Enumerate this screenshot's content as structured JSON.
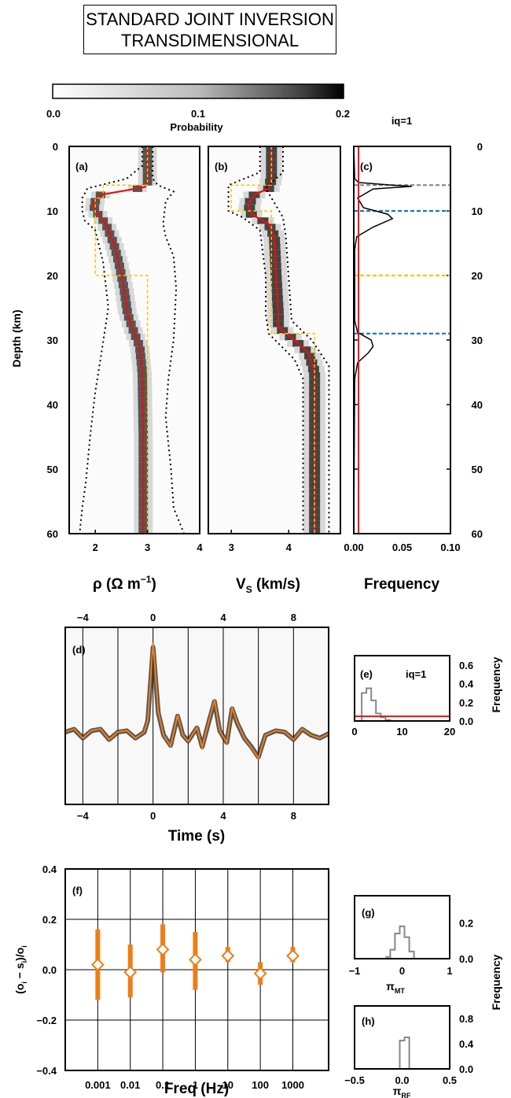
{
  "title": {
    "line1": "STANDARD JOINT INVERSION",
    "line2": "TRANSDIMENSIONAL"
  },
  "colors": {
    "red": "#e8100c",
    "yellow": "#f0c800",
    "orange": "#f07d14",
    "blue": "#1874c8",
    "gray": "#888888",
    "black": "#000000"
  },
  "colorbar": {
    "ticks": [
      "0.0",
      "0.1",
      "0.2"
    ],
    "label": "Probability",
    "range": [
      0,
      0.2
    ]
  },
  "panel_labels": {
    "a": "(a)",
    "b": "(b)",
    "c": "(c)",
    "d": "(d)",
    "e": "(e)",
    "f": "(f)",
    "g": "(g)",
    "h": "(h)"
  },
  "iq_label": "iq=1",
  "iq_label_e": "iq=1",
  "depth_ticks": [
    "0",
    "10",
    "20",
    "30",
    "40",
    "50",
    "60"
  ],
  "depth_label": "Depth (km)",
  "rho_ticks": [
    "2",
    "3",
    "4"
  ],
  "vs_ticks": [
    "3",
    "4"
  ],
  "freq_c_ticks": [
    "0.00",
    "0.05",
    "0.10"
  ],
  "xlabel_a": "ρ (Ω m",
  "xlabel_a_sup": "−1",
  "xlabel_a_end": ")",
  "xlabel_b": "V",
  "xlabel_b_sub": "S",
  "xlabel_b_end": " (km/s)",
  "xlabel_c": "Frequency",
  "time_ticks": [
    "−4",
    "0",
    "4",
    "8"
  ],
  "time_label": "Time (s)",
  "e_xticks": [
    "0",
    "10",
    "20"
  ],
  "e_yticks": [
    "0.0",
    "0.2",
    "0.4",
    "0.6"
  ],
  "freq_label_e": "Frequency",
  "f_yticks": [
    "0.4",
    "0.2",
    "0.0",
    "−0.2",
    "−0.4"
  ],
  "f_xticks": [
    "0.001",
    "0.01",
    "0.1",
    "1",
    "10",
    "100",
    "1000"
  ],
  "f_ylabel": "(o",
  "f_ylabel_i1": "i",
  "f_ylabel_mid": " − s",
  "f_ylabel_i2": "i",
  "f_ylabel_div": ")/o",
  "f_ylabel_i3": "i",
  "f_xlabel": "Freq (Hz)",
  "g_xticks": [
    "−1",
    "0",
    "1"
  ],
  "g_yticks": [
    "0.0",
    "0.2"
  ],
  "g_xlabel": "π",
  "g_xlabel_sub": "MT",
  "h_xticks": [
    "−0.5",
    "0.0",
    "0.5"
  ],
  "h_yticks": [
    "0.0",
    "0.4",
    "0.8"
  ],
  "h_xlabel": "π",
  "h_xlabel_sub": "RF",
  "freq_label_gh": "Frequency",
  "chart_data": [
    {
      "id": "a",
      "type": "line",
      "xlabel": "ρ (Ω m−1)",
      "ylabel": "Depth (km)",
      "xlim": [
        1.5,
        4
      ],
      "ylim": [
        60,
        0
      ],
      "series": [
        {
          "role": "mean",
          "color": "red",
          "x": [
            3,
            3,
            2.95,
            2.6,
            2.1,
            1.95,
            2.05,
            2.2,
            2.35,
            2.45,
            2.55,
            2.62,
            2.75,
            2.85,
            2.9,
            2.92,
            2.92
          ],
          "y": [
            0,
            5.5,
            6.3,
            6.8,
            7.5,
            9,
            10.5,
            12,
            15,
            18,
            22,
            26,
            29,
            31,
            35,
            45,
            60
          ]
        },
        {
          "role": "true",
          "color": "yellow",
          "x": [
            3,
            3,
            2.15,
            2.15,
            2,
            2,
            3,
            3
          ],
          "y": [
            0,
            6,
            6,
            8,
            8,
            20,
            20,
            60
          ]
        },
        {
          "role": "credible-left",
          "color": "black",
          "x": [
            2.9,
            2.9,
            2.6,
            1.85,
            1.75,
            1.75,
            1.8,
            2.0,
            2.15,
            2.25,
            2.1,
            2.0,
            1.9,
            1.82,
            1.75,
            1.7
          ],
          "y": [
            0,
            3,
            5,
            6.5,
            8,
            10,
            11.5,
            13,
            18,
            25,
            33,
            38,
            45,
            52,
            56,
            60
          ]
        },
        {
          "role": "credible-right",
          "color": "black",
          "x": [
            3.1,
            3.1,
            3.2,
            3.5,
            3.35,
            3.3,
            3.35,
            3.5,
            3.55,
            3.5,
            3.4,
            3.35,
            3.45,
            3.5,
            3.7
          ],
          "y": [
            0,
            5,
            6,
            7,
            8.5,
            12,
            14,
            17,
            22,
            30,
            36,
            42,
            50,
            56,
            60
          ]
        }
      ]
    },
    {
      "id": "b",
      "type": "line",
      "xlabel": "VS (km/s)",
      "ylabel": "Depth (km)",
      "xlim": [
        2.6,
        4.9
      ],
      "ylim": [
        60,
        0
      ],
      "series": [
        {
          "role": "mean",
          "color": "red",
          "x": [
            3.7,
            3.7,
            3.65,
            3.4,
            3.3,
            3.35,
            3.65,
            3.75,
            3.78,
            3.82,
            3.82,
            4.1,
            4.35,
            4.45,
            4.45
          ],
          "y": [
            0,
            5,
            6.5,
            7.5,
            9,
            10.5,
            12,
            14,
            20,
            26,
            28,
            30,
            32,
            35,
            60
          ]
        },
        {
          "role": "true",
          "color": "yellow",
          "x": [
            3.7,
            3.7,
            3.0,
            3.0,
            3.7,
            3.7,
            4.45,
            4.45
          ],
          "y": [
            0,
            6,
            6,
            10,
            10,
            29,
            29,
            60
          ]
        },
        {
          "role": "credible-left",
          "color": "black",
          "x": [
            3.5,
            3.5,
            2.95,
            2.95,
            3.2,
            3.5,
            3.6,
            3.6,
            3.65,
            4.1,
            4.25,
            4.25
          ],
          "y": [
            0,
            4,
            6,
            10,
            11,
            13,
            20,
            26,
            29,
            33,
            36,
            60
          ]
        },
        {
          "role": "credible-right",
          "color": "black",
          "x": [
            3.9,
            3.9,
            3.6,
            3.9,
            3.95,
            4.05,
            4.4,
            4.7,
            4.7
          ],
          "y": [
            0,
            4,
            6.5,
            11,
            14,
            27,
            30,
            34,
            60
          ]
        }
      ]
    },
    {
      "id": "c",
      "type": "line",
      "xlabel": "Frequency",
      "xlim": [
        0,
        0.1
      ],
      "ylim": [
        60,
        0
      ],
      "series": [
        {
          "role": "interface-frequency",
          "color": "black",
          "x": [
            0,
            0.001,
            0.005,
            0.04,
            0.06,
            0.02,
            0.004,
            0.01,
            0.035,
            0.04,
            0.02,
            0.003,
            0.001,
            0.001,
            0.004,
            0.018,
            0.02,
            0.015,
            0.004,
            0.001,
            0
          ],
          "y": [
            0,
            5,
            5.6,
            6,
            6.2,
            6.6,
            8,
            9.5,
            10.5,
            11.2,
            12.5,
            14,
            16,
            27,
            28.8,
            30,
            31,
            32,
            33.5,
            36,
            60
          ]
        },
        {
          "role": "prior",
          "color": "red",
          "x": [
            0.005,
            0.005
          ],
          "y": [
            0,
            60
          ]
        }
      ],
      "hlines": [
        {
          "y": 6,
          "color": "gray"
        },
        {
          "y": 10,
          "color": "blue"
        },
        {
          "y": 20,
          "color": "yellow"
        },
        {
          "y": 29,
          "color": "blue"
        }
      ]
    },
    {
      "id": "d",
      "type": "line",
      "xlabel": "Time (s)",
      "xlim": [
        -5,
        10
      ],
      "ylim": [
        -0.45,
        0.7
      ],
      "series": [
        {
          "role": "observed",
          "color": "orange",
          "x": [
            -5,
            -4.5,
            -4,
            -3.5,
            -3,
            -2.5,
            -2,
            -1.5,
            -1,
            -0.5,
            -0.3,
            0,
            0.3,
            0.6,
            1,
            1.4,
            1.7,
            2,
            2.5,
            2.8,
            3.2,
            3.5,
            3.8,
            4.2,
            4.5,
            4.8,
            5.2,
            5.6,
            6,
            6.4,
            7,
            7.5,
            8,
            8.5,
            9,
            9.5,
            10
          ],
          "y": [
            0.02,
            0.04,
            -0.02,
            0.03,
            0.04,
            -0.03,
            0.02,
            0.03,
            -0.02,
            0.02,
            0.1,
            0.6,
            0.15,
            0.0,
            -0.07,
            0.13,
            0.0,
            -0.04,
            0.05,
            -0.08,
            0.1,
            0.23,
            0.03,
            -0.05,
            0.18,
            0.08,
            -0.02,
            -0.08,
            -0.15,
            0.0,
            0.03,
            0.02,
            -0.03,
            0.04,
            0.0,
            -0.02,
            0.01
          ]
        }
      ]
    },
    {
      "id": "e",
      "type": "bar",
      "xlim": [
        0,
        20
      ],
      "ylim": [
        0,
        0.7
      ],
      "categories": [
        1,
        2,
        3,
        4,
        5,
        6,
        7,
        8,
        9
      ],
      "values": [
        0.0,
        0.3,
        0.35,
        0.22,
        0.08,
        0.04,
        0.01,
        0.0,
        0.0
      ],
      "prior_level": 0.05
    },
    {
      "id": "f",
      "type": "scatter",
      "xlabel": "Freq (Hz)",
      "ylabel": "(oi − si)/oi",
      "ylim": [
        -0.4,
        0.4
      ],
      "categories": [
        "0.001",
        "0.01",
        "0.1",
        "1",
        "10",
        "100",
        "1000"
      ],
      "values": [
        0.02,
        -0.01,
        0.08,
        0.04,
        0.055,
        -0.015,
        0.055
      ],
      "error_low": [
        -0.12,
        -0.11,
        -0.01,
        -0.08,
        0.03,
        -0.06,
        0.03
      ],
      "error_high": [
        0.16,
        0.1,
        0.18,
        0.15,
        0.09,
        0.03,
        0.09
      ]
    },
    {
      "id": "g",
      "type": "bar",
      "xlabel": "πMT",
      "xlim": [
        -1,
        1
      ],
      "ylim": [
        0,
        0.35
      ],
      "categories": [
        -0.3,
        -0.2,
        -0.1,
        0.0,
        0.1,
        0.2,
        0.3
      ],
      "values": [
        0.01,
        0.05,
        0.14,
        0.18,
        0.12,
        0.04,
        0.0
      ]
    },
    {
      "id": "h",
      "type": "bar",
      "xlabel": "πRF",
      "xlim": [
        -0.5,
        0.5
      ],
      "ylim": [
        0,
        1.0
      ],
      "categories": [
        0.0,
        0.05
      ],
      "values": [
        0.45,
        0.5
      ]
    }
  ]
}
